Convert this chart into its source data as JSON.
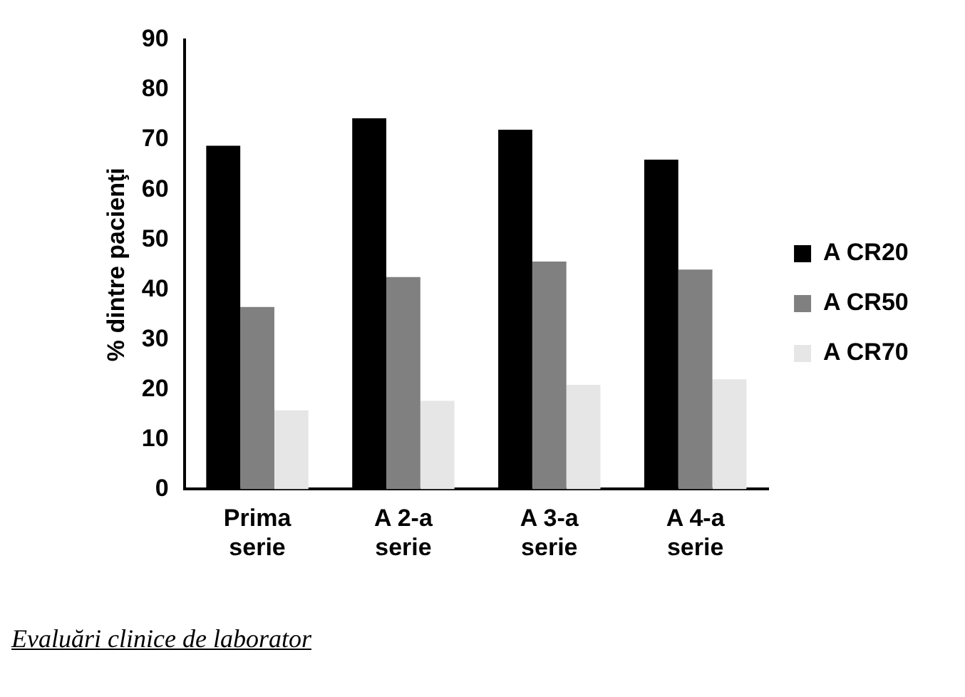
{
  "chart_data": {
    "type": "bar",
    "ylabel": "% dintre pacienţi",
    "categories": [
      "Prima serie",
      "A 2-a serie",
      "A 3-a serie",
      "A 4-a serie"
    ],
    "series": [
      {
        "name": "A CR20",
        "color": "#000000",
        "values": [
          68.8,
          74.3,
          72,
          66
        ]
      },
      {
        "name": "A CR50",
        "color": "#808080",
        "values": [
          36.5,
          42.5,
          45.6,
          44
        ]
      },
      {
        "name": "A CR70",
        "color": "#e6e6e6",
        "values": [
          15.8,
          17.7,
          20.9,
          22
        ]
      }
    ],
    "ylim": [
      0,
      90
    ],
    "yticks": [
      0,
      10,
      20,
      30,
      40,
      50,
      60,
      70,
      80,
      90
    ],
    "grid": false,
    "legend": "right",
    "annotations": [
      "Evaluări clinice de laborator"
    ]
  }
}
